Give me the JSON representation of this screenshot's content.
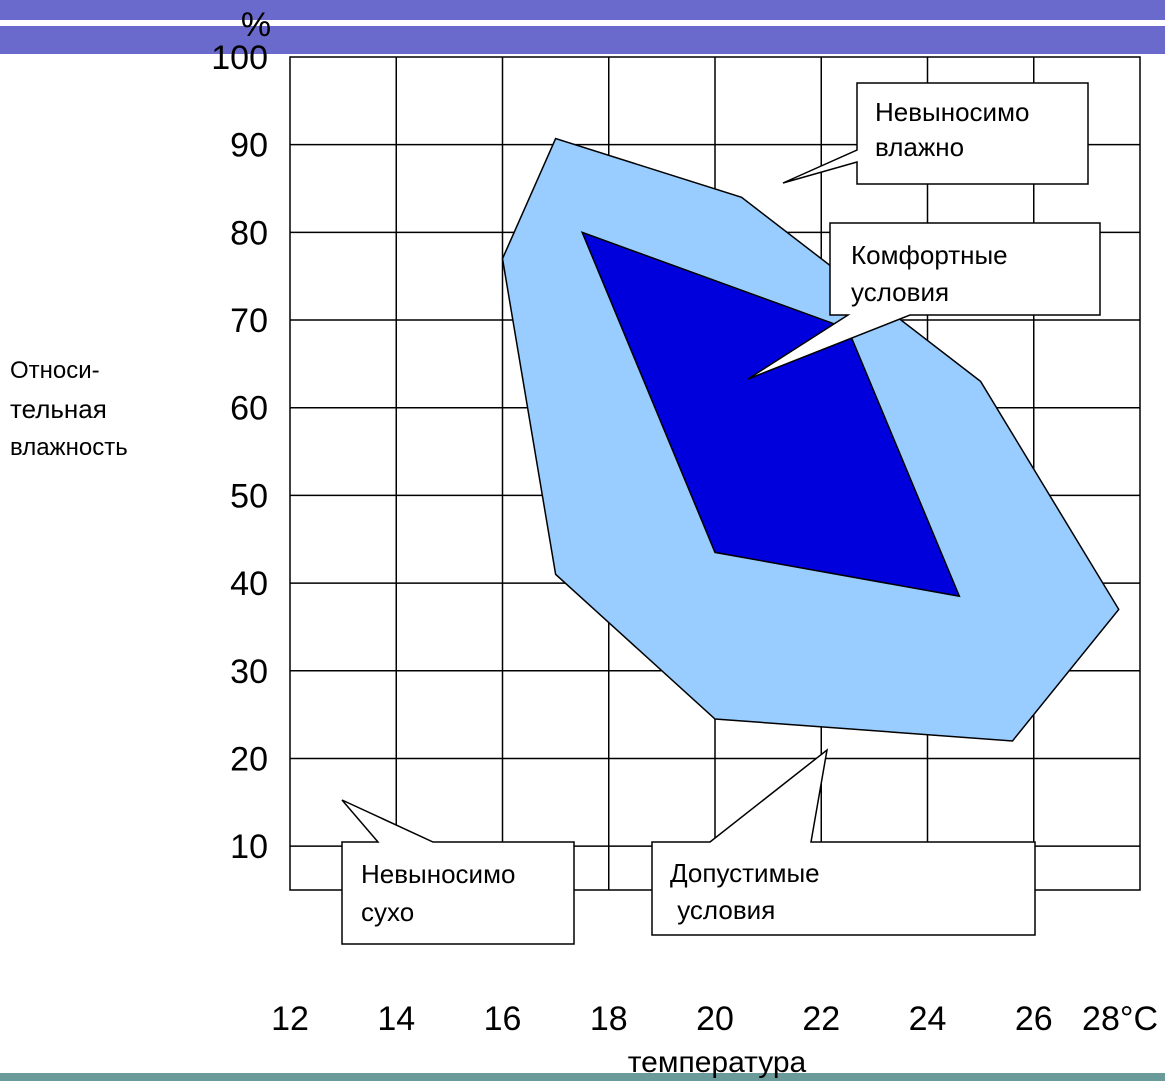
{
  "chart_data": {
    "type": "area",
    "y_unit": "%",
    "ylabel_lines": [
      "Относи-",
      "тельная",
      "влажность"
    ],
    "xlabel": "температура",
    "x_ticks": [
      "12",
      "14",
      "16",
      "18",
      "20",
      "22",
      "24",
      "26",
      "28°C"
    ],
    "y_ticks": [
      "100",
      "90",
      "80",
      "70",
      "60",
      "50",
      "40",
      "30",
      "20",
      "10"
    ],
    "xlim": [
      12,
      28
    ],
    "ylim": [
      5,
      100
    ],
    "grid": true,
    "colors": {
      "header_band": "#6a6acd",
      "footer_band": "#6a9a9a",
      "acceptable_fill": "#99ccff",
      "comfort_fill": "#0000dd"
    },
    "regions": [
      {
        "id": "acceptable",
        "points": [
          [
            16.0,
            77
          ],
          [
            17.0,
            90.7
          ],
          [
            20.5,
            84
          ],
          [
            25.0,
            63
          ],
          [
            27.6,
            37
          ],
          [
            25.6,
            22
          ],
          [
            20.0,
            24.5
          ],
          [
            17.0,
            41
          ]
        ]
      },
      {
        "id": "comfort",
        "points": [
          [
            17.5,
            80
          ],
          [
            22.5,
            69
          ],
          [
            24.6,
            38.5
          ],
          [
            20.0,
            43.5
          ]
        ]
      }
    ],
    "annotations": [
      {
        "id": "unbearably-humid",
        "lines": [
          "Невыносимо",
          "влажно"
        ]
      },
      {
        "id": "comfortable",
        "lines": [
          "Комфортные",
          "условия"
        ]
      },
      {
        "id": "unbearably-dry",
        "lines": [
          "Невыносимо",
          "сухо"
        ]
      },
      {
        "id": "acceptable",
        "lines": [
          "Допустимые",
          " условия"
        ]
      }
    ]
  }
}
